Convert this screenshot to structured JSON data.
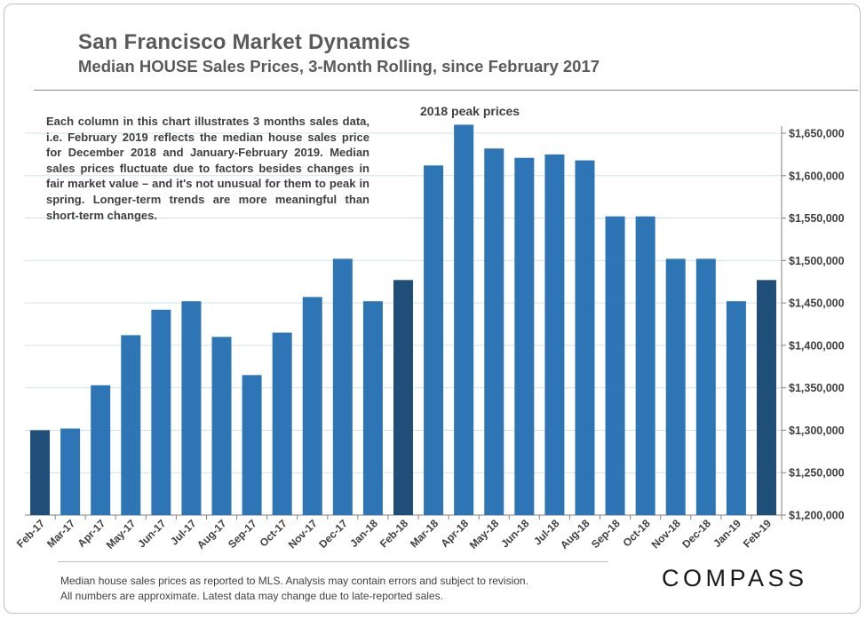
{
  "header": {
    "title": "San Francisco Market Dynamics",
    "subtitle": "Median HOUSE Sales Prices, 3-Month Rolling, since February 2017"
  },
  "annotation": {
    "note": "Each column in this chart illustrates 3 months sales data, i.e. February 2019 reflects the median house sales price for December 2018 and January-February 2019. Median sales prices fluctuate due to factors besides changes in fair market value – and it's not unusual for them to peak in spring. Longer-term trends are more meaningful than short-term changes.",
    "peak_label": "2018 peak prices"
  },
  "footer": {
    "line1": "Median house sales prices as reported to MLS.  Analysis may contain errors and subject to revision.",
    "line2": "All numbers are approximate. Latest data may change due to late-reported sales.",
    "logo": "COMPASS"
  },
  "colors": {
    "bar": "#2e75b6",
    "bar_highlight": "#1f4e79",
    "grid": "#cfe3ea",
    "axis": "#808080",
    "text": "#404040"
  },
  "chart_data": {
    "type": "bar",
    "categories": [
      "Feb-17",
      "Mar-17",
      "Apr-17",
      "May-17",
      "Jun-17",
      "Jul-17",
      "Aug-17",
      "Sep-17",
      "Oct-17",
      "Nov-17",
      "Dec-17",
      "Jan-18",
      "Feb-18",
      "Mar-18",
      "Apr-18",
      "May-18",
      "Jun-18",
      "Jul-18",
      "Aug-18",
      "Sep-18",
      "Oct-18",
      "Nov-18",
      "Dec-18",
      "Jan-19",
      "Feb-19"
    ],
    "values": [
      1300000,
      1302000,
      1353000,
      1412000,
      1442000,
      1452000,
      1410000,
      1365000,
      1415000,
      1457000,
      1502000,
      1452000,
      1477000,
      1612000,
      1660000,
      1632000,
      1621000,
      1625000,
      1618000,
      1552000,
      1552000,
      1502000,
      1502000,
      1452000,
      1477000
    ],
    "highlighted": [
      "Feb-17",
      "Feb-18",
      "Feb-19"
    ],
    "ylim": [
      1200000,
      1660000
    ],
    "yticks": [
      1200000,
      1250000,
      1300000,
      1350000,
      1400000,
      1450000,
      1500000,
      1550000,
      1600000,
      1650000
    ],
    "ytick_labels": [
      "$1,200,000",
      "$1,250,000",
      "$1,300,000",
      "$1,350,000",
      "$1,400,000",
      "$1,450,000",
      "$1,500,000",
      "$1,550,000",
      "$1,600,000",
      "$1,650,000"
    ],
    "y_axis_side": "right",
    "grid": true,
    "title": "",
    "xlabel": "",
    "ylabel": ""
  }
}
